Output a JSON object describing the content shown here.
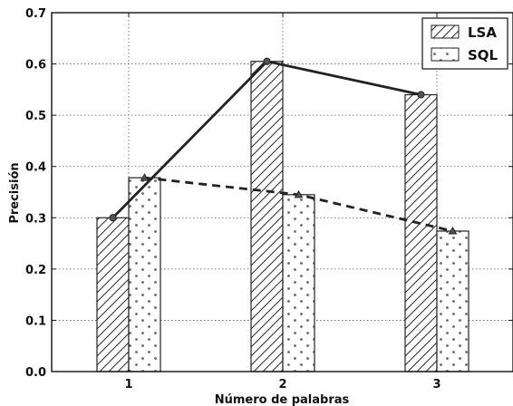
{
  "chart_data": {
    "type": "bar",
    "xlabel": "Número de palabras",
    "ylabel": "Precisión",
    "categories": [
      "1",
      "2",
      "3"
    ],
    "ylim": [
      0.0,
      0.7
    ],
    "yticks": [
      "0.0",
      "0.1",
      "0.2",
      "0.3",
      "0.4",
      "0.5",
      "0.6",
      "0.7"
    ],
    "grid": true,
    "legend_position": "top-right",
    "series": [
      {
        "name": "LSA",
        "values": [
          0.3,
          0.605,
          0.54
        ],
        "hatch": "diagonal",
        "line_style": "solid",
        "marker": "circle"
      },
      {
        "name": "SQL",
        "values": [
          0.378,
          0.345,
          0.274
        ],
        "hatch": "dots",
        "line_style": "dashed",
        "marker": "triangle"
      }
    ],
    "colors": {
      "bar_fill": "#ffffff",
      "bar_edge": "#222222",
      "line": "#222222",
      "grid": "#555555"
    }
  }
}
